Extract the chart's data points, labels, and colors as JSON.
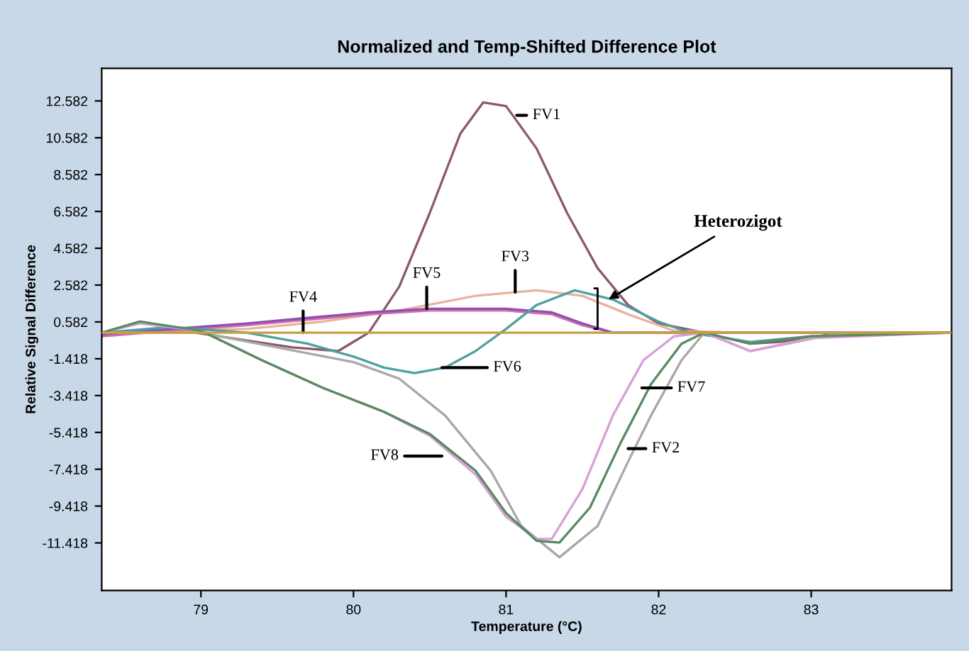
{
  "chart_data": {
    "type": "line",
    "title": "Normalized and Temp-Shifted Difference Plot",
    "xlabel": "Temperature (°C)",
    "ylabel": "Relative Signal Difference",
    "xlim": [
      78.35,
      83.92
    ],
    "xticks": [
      79,
      80,
      81,
      82,
      83
    ],
    "ylim": [
      -14.0,
      14.35
    ],
    "yticks": [
      12.582,
      10.582,
      8.582,
      6.582,
      4.582,
      2.582,
      0.582,
      -1.418,
      -3.418,
      -5.418,
      -7.418,
      -9.418,
      -11.418
    ],
    "grid": false,
    "marker": "none",
    "line_style": "solid",
    "series": [
      {
        "color": "#c8a040",
        "x": [
          78.35,
          83.92
        ],
        "values": [
          0,
          0
        ]
      },
      {
        "color": "#8b5a6a",
        "x": [
          78.35,
          78.8,
          79.2,
          79.6,
          79.9,
          80.1,
          80.3,
          80.5,
          80.7,
          80.85,
          81.0,
          81.2,
          81.4,
          81.6,
          81.8,
          82.0,
          82.3,
          82.6,
          82.8,
          83.2,
          83.92
        ],
        "values": [
          0.0,
          0.2,
          -0.3,
          -0.8,
          -1.0,
          0.0,
          2.5,
          6.5,
          10.8,
          12.5,
          12.3,
          10.0,
          6.5,
          3.5,
          1.5,
          0.5,
          0.0,
          -0.6,
          -0.5,
          0.0,
          0.0
        ]
      },
      {
        "color": "#e8b4a0",
        "x": [
          78.35,
          79.3,
          79.8,
          80.3,
          80.8,
          81.2,
          81.5,
          81.8,
          82.1,
          82.5,
          83.92
        ],
        "values": [
          0.0,
          0.2,
          0.6,
          1.2,
          2.0,
          2.3,
          2.0,
          1.0,
          0.1,
          0.0,
          0.0
        ]
      },
      {
        "color": "#d070b0",
        "x": [
          78.35,
          78.8,
          79.3,
          79.7,
          80.1,
          80.5,
          81.0,
          81.3,
          81.5,
          81.7,
          83.92
        ],
        "values": [
          -0.2,
          0.1,
          0.4,
          0.7,
          1.0,
          1.2,
          1.2,
          1.0,
          0.4,
          0.0,
          0.0
        ]
      },
      {
        "color": "#9050b0",
        "x": [
          78.35,
          78.8,
          79.3,
          79.7,
          80.1,
          80.5,
          81.0,
          81.3,
          81.5,
          81.7,
          83.92
        ],
        "values": [
          -0.1,
          0.2,
          0.5,
          0.8,
          1.1,
          1.3,
          1.3,
          1.1,
          0.5,
          0.0,
          0.0
        ]
      },
      {
        "color": "#50a0a0",
        "x": [
          78.35,
          78.8,
          79.3,
          79.7,
          80.0,
          80.2,
          80.4,
          80.6,
          80.8,
          81.0,
          81.2,
          81.45,
          81.7,
          82.0,
          82.2,
          82.6,
          83.0,
          83.92
        ],
        "values": [
          0.0,
          0.3,
          0.0,
          -0.6,
          -1.3,
          -1.9,
          -2.2,
          -1.9,
          -1.0,
          0.2,
          1.5,
          2.3,
          1.8,
          0.6,
          0.0,
          -0.5,
          -0.2,
          0.0
        ]
      },
      {
        "color": "#a8a8a8",
        "x": [
          78.35,
          79.0,
          79.5,
          80.0,
          80.3,
          80.6,
          80.9,
          81.1,
          81.35,
          81.6,
          81.8,
          81.95,
          82.15,
          82.3,
          82.6,
          82.9,
          83.2,
          83.92
        ],
        "values": [
          0.0,
          0.0,
          -0.8,
          -1.6,
          -2.5,
          -4.5,
          -7.5,
          -10.5,
          -12.2,
          -10.5,
          -7.0,
          -4.5,
          -1.5,
          0.0,
          -1.0,
          -0.5,
          0.0,
          0.0
        ]
      },
      {
        "color": "#d8a0d8",
        "x": [
          78.35,
          78.6,
          79.0,
          79.4,
          79.8,
          80.2,
          80.5,
          80.8,
          81.0,
          81.2,
          81.3,
          81.5,
          81.7,
          81.9,
          82.1,
          82.3,
          82.6,
          83.0,
          83.92
        ],
        "values": [
          0.0,
          0.5,
          0.1,
          -1.5,
          -3.0,
          -4.3,
          -5.6,
          -7.7,
          -10.0,
          -11.2,
          -11.2,
          -8.5,
          -4.5,
          -1.5,
          -0.2,
          0.0,
          -1.0,
          -0.3,
          0.0
        ]
      },
      {
        "color": "#5a8a60",
        "x": [
          78.35,
          78.6,
          79.0,
          79.4,
          79.8,
          80.2,
          80.5,
          80.8,
          81.0,
          81.2,
          81.35,
          81.55,
          81.75,
          81.95,
          82.15,
          82.3,
          82.6,
          83.0,
          83.92
        ],
        "values": [
          0.0,
          0.6,
          0.1,
          -1.5,
          -3.0,
          -4.3,
          -5.5,
          -7.5,
          -9.8,
          -11.3,
          -11.4,
          -9.5,
          -6.0,
          -2.8,
          -0.6,
          0.0,
          -0.6,
          -0.2,
          0.0
        ]
      }
    ],
    "annotations": [
      {
        "text": "FV1",
        "x": 81.07,
        "y": 11.8
      },
      {
        "text": "FV4",
        "x": 79.67,
        "y": 0.0
      },
      {
        "text": "FV5",
        "x": 80.48,
        "y": 1.3
      },
      {
        "text": "FV3",
        "x": 81.06,
        "y": 2.2
      },
      {
        "text": "FV6",
        "x": 80.58,
        "y": -1.9
      },
      {
        "text": "FV7",
        "x": 81.89,
        "y": -3.0
      },
      {
        "text": "FV2",
        "x": 81.8,
        "y": -6.3
      },
      {
        "text": "FV8",
        "x": 80.58,
        "y": -6.7
      },
      {
        "text": "Heterozigot",
        "x": 81.65,
        "y": 1.7
      }
    ]
  }
}
